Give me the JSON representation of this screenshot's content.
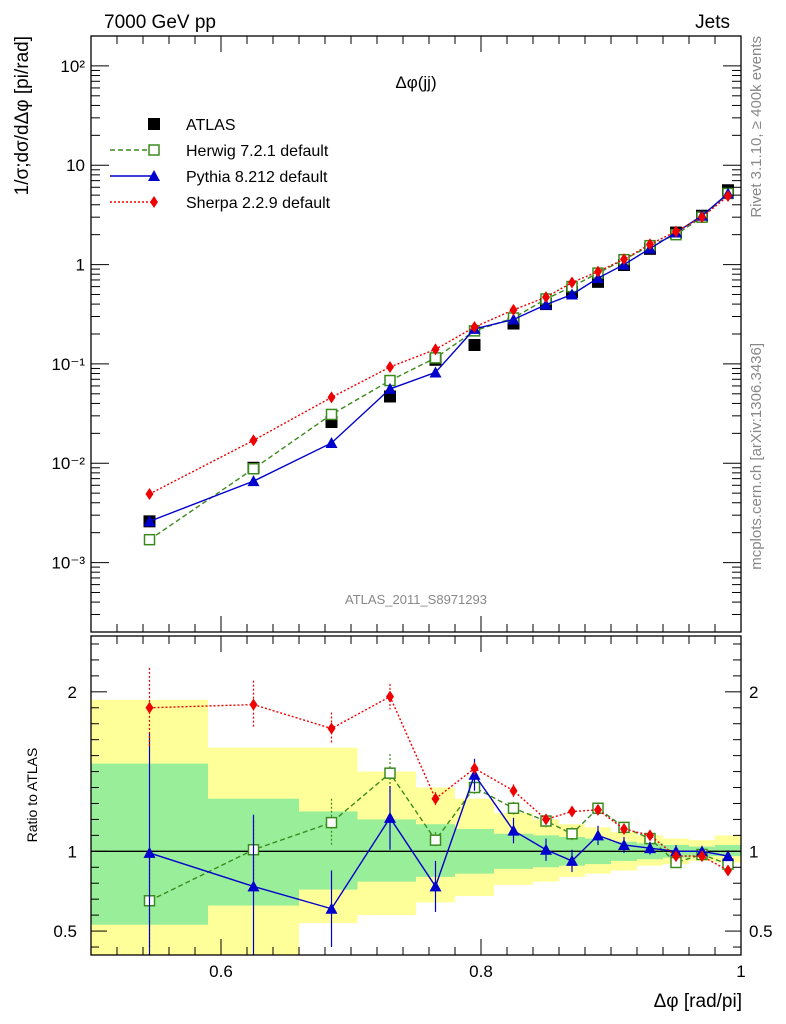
{
  "header": {
    "left": "7000 GeV pp",
    "right": "Jets"
  },
  "side_labels": {
    "rivet": "Rivet 3.1.10, ≥ 400k events",
    "mcplots": "mcplots.cern.ch [arXiv:1306.3436]"
  },
  "chart_data": [
    {
      "type": "line",
      "title": "Δφ(jj)",
      "analysis_id": "ATLAS_2011_S8971293",
      "ylabel": "1/σ;dσ/dΔφ [pi/rad]",
      "yscale": "log",
      "xlim": [
        0.5,
        1.0
      ],
      "ylim": [
        0.0002,
        200
      ],
      "y_tick_labels": [
        "10⁻³",
        "10⁻²",
        "10⁻¹",
        "1",
        "10",
        "10²"
      ],
      "legend_position": "top-left",
      "x": [
        0.545,
        0.625,
        0.685,
        0.73,
        0.765,
        0.795,
        0.825,
        0.85,
        0.87,
        0.89,
        0.91,
        0.93,
        0.95,
        0.97,
        0.99
      ],
      "series": [
        {
          "name": "ATLAS",
          "color": "#000000",
          "marker": "filled-square",
          "values": [
            0.0026,
            0.009,
            0.026,
            0.047,
            0.11,
            0.155,
            0.255,
            0.4,
            0.53,
            0.67,
            0.99,
            1.44,
            2.1,
            3.1,
            5.6
          ]
        },
        {
          "name": "Herwig 7.2.1 default",
          "color": "#3b8a1e",
          "marker": "open-square",
          "dash": "dashed",
          "values": [
            0.0017,
            0.0088,
            0.031,
            0.068,
            0.115,
            0.215,
            0.29,
            0.45,
            0.6,
            0.82,
            1.12,
            1.55,
            2.0,
            3.0,
            5.2
          ]
        },
        {
          "name": "Pythia 8.212 default",
          "color": "#0000cc",
          "marker": "filled-triangle",
          "dash": "solid",
          "values": [
            0.0026,
            0.0066,
            0.016,
            0.056,
            0.082,
            0.225,
            0.28,
            0.395,
            0.5,
            0.73,
            1.0,
            1.45,
            2.1,
            3.1,
            5.2
          ]
        },
        {
          "name": "Sherpa 2.2.9 default",
          "color": "#ee0000",
          "marker": "filled-diamond",
          "dash": "dotted",
          "values": [
            0.0049,
            0.017,
            0.046,
            0.093,
            0.14,
            0.235,
            0.35,
            0.47,
            0.66,
            0.85,
            1.13,
            1.6,
            2.15,
            3.0,
            4.9
          ]
        }
      ]
    },
    {
      "type": "line",
      "ylabel": "Ratio to ATLAS",
      "xlabel": "Δφ [rad/pi]",
      "xlim": [
        0.5,
        1.0
      ],
      "ylim": [
        0.35,
        2.35
      ],
      "x_tick_labels": [
        "0.6",
        "0.8",
        "1"
      ],
      "y_tick_labels": [
        "0.5",
        "1",
        "2"
      ],
      "reference_line": 1,
      "uncertainty_bands": {
        "colors": {
          "inner": "#99ee99",
          "outer": "#ffff99"
        },
        "bins": [
          {
            "lo": 0.5,
            "hi": 0.59,
            "inner": [
              0.54,
              1.55
            ],
            "outer": [
              0.3,
              1.95
            ]
          },
          {
            "lo": 0.59,
            "hi": 0.66,
            "inner": [
              0.66,
              1.33
            ],
            "outer": [
              0.3,
              1.65
            ]
          },
          {
            "lo": 0.66,
            "hi": 0.705,
            "inner": [
              0.76,
              1.25
            ],
            "outer": [
              0.55,
              1.65
            ]
          },
          {
            "lo": 0.705,
            "hi": 0.75,
            "inner": [
              0.81,
              1.2
            ],
            "outer": [
              0.6,
              1.5
            ]
          },
          {
            "lo": 0.75,
            "hi": 0.78,
            "inner": [
              0.84,
              1.17
            ],
            "outer": [
              0.68,
              1.4
            ]
          },
          {
            "lo": 0.78,
            "hi": 0.81,
            "inner": [
              0.86,
              1.14
            ],
            "outer": [
              0.72,
              1.33
            ]
          },
          {
            "lo": 0.81,
            "hi": 0.84,
            "inner": [
              0.89,
              1.11
            ],
            "outer": [
              0.79,
              1.24
            ]
          },
          {
            "lo": 0.84,
            "hi": 0.86,
            "inner": [
              0.9,
              1.1
            ],
            "outer": [
              0.81,
              1.2
            ]
          },
          {
            "lo": 0.86,
            "hi": 0.88,
            "inner": [
              0.91,
              1.09
            ],
            "outer": [
              0.84,
              1.17
            ]
          },
          {
            "lo": 0.88,
            "hi": 0.9,
            "inner": [
              0.92,
              1.08
            ],
            "outer": [
              0.86,
              1.15
            ]
          },
          {
            "lo": 0.9,
            "hi": 0.92,
            "inner": [
              0.94,
              1.06
            ],
            "outer": [
              0.88,
              1.12
            ]
          },
          {
            "lo": 0.92,
            "hi": 0.94,
            "inner": [
              0.95,
              1.05
            ],
            "outer": [
              0.91,
              1.1
            ]
          },
          {
            "lo": 0.94,
            "hi": 0.96,
            "inner": [
              0.96,
              1.04
            ],
            "outer": [
              0.92,
              1.08
            ]
          },
          {
            "lo": 0.96,
            "hi": 0.98,
            "inner": [
              0.97,
              1.03
            ],
            "outer": [
              0.94,
              1.07
            ]
          },
          {
            "lo": 0.98,
            "hi": 1.0,
            "inner": [
              0.97,
              1.04
            ],
            "outer": [
              0.93,
              1.1
            ]
          }
        ]
      },
      "x": [
        0.545,
        0.625,
        0.685,
        0.73,
        0.765,
        0.795,
        0.825,
        0.85,
        0.87,
        0.89,
        0.91,
        0.93,
        0.95,
        0.97,
        0.99
      ],
      "series": [
        {
          "name": "Herwig 7.2.1 default",
          "color": "#3b8a1e",
          "marker": "open-square",
          "dash": "dashed",
          "values": [
            0.69,
            1.01,
            1.18,
            1.49,
            1.07,
            1.4,
            1.27,
            1.19,
            1.11,
            1.27,
            1.15,
            1.08,
            0.93,
            0.98,
            0.92
          ],
          "err": [
            0.3,
            0.18,
            0.15,
            0.12,
            0.05,
            0.04,
            0.04,
            0.04,
            0.04,
            0.03,
            0.03,
            0.03,
            0.03,
            0.03,
            0.03
          ]
        },
        {
          "name": "Pythia 8.212 default",
          "color": "#0000cc",
          "marker": "filled-triangle",
          "dash": "solid",
          "values": [
            0.99,
            0.78,
            0.64,
            1.21,
            0.78,
            1.48,
            1.13,
            1.01,
            0.94,
            1.1,
            1.04,
            1.02,
            1.0,
            1.0,
            0.97
          ],
          "err": [
            0.75,
            0.45,
            0.24,
            0.2,
            0.16,
            0.1,
            0.08,
            0.07,
            0.07,
            0.06,
            0.05,
            0.04,
            0.04,
            0.03,
            0.03
          ]
        },
        {
          "name": "Sherpa 2.2.9 default",
          "color": "#ee0000",
          "marker": "filled-diamond",
          "dash": "dotted",
          "values": [
            1.9,
            1.92,
            1.77,
            1.97,
            1.33,
            1.52,
            1.38,
            1.2,
            1.25,
            1.26,
            1.14,
            1.1,
            0.97,
            0.97,
            0.88
          ],
          "err": [
            0.25,
            0.15,
            0.1,
            0.08,
            0.04,
            0.04,
            0.04,
            0.03,
            0.03,
            0.03,
            0.02,
            0.02,
            0.02,
            0.02,
            0.02
          ]
        }
      ]
    }
  ]
}
